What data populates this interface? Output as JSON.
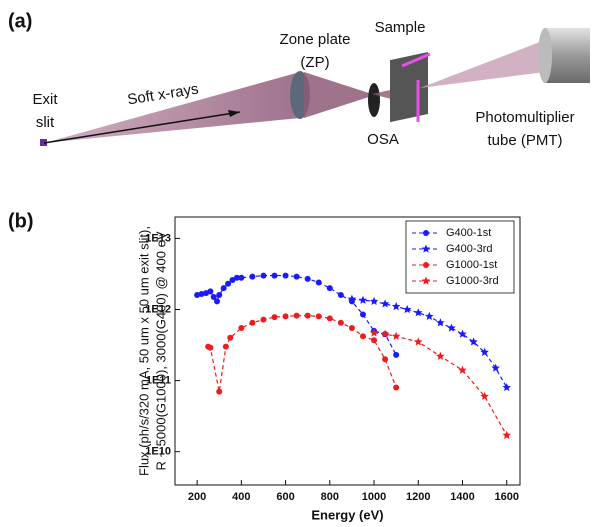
{
  "panel_a": {
    "label": "(a)",
    "exit": "Exit",
    "slit": "slit",
    "beam": "Soft x-rays",
    "zp1": "Zone plate",
    "zp2": "(ZP)",
    "sample": "Sample",
    "osa": "OSA",
    "pmt1": "Photomultiplier",
    "pmt2": "tube (PMT)"
  },
  "chart_data": {
    "type": "line",
    "panel_label": "(b)",
    "log_y": true,
    "xlabel": "Energy (eV)",
    "ylabel": [
      "Flux (ph/s/320 mA, 50 um x 50 um exit slit),",
      "R ~ 5000(G1000), 3000(G400) @ 400 eV"
    ],
    "xlim": [
      100,
      1660
    ],
    "xticks": [
      200,
      400,
      600,
      800,
      1000,
      1200,
      1400,
      1600
    ],
    "ylim": [
      3400000000.0,
      20000000000000.0
    ],
    "yticks": [
      {
        "value": 10000000000.0,
        "label": "1E10"
      },
      {
        "value": 100000000000.0,
        "label": "1E11"
      },
      {
        "value": 1000000000000.0,
        "label": "1E12"
      },
      {
        "value": 10000000000000.0,
        "label": "1E13"
      }
    ],
    "legend": "top-right",
    "series": [
      {
        "name": "G400-1st",
        "color": "#1a1aff",
        "marker": "circle",
        "x": [
          200,
          220,
          240,
          260,
          275,
          290,
          300,
          320,
          340,
          360,
          380,
          400,
          450,
          500,
          550,
          600,
          650,
          700,
          750,
          800,
          850,
          900,
          950,
          1000,
          1050,
          1100
        ],
        "values": [
          1600000000000.0,
          1650000000000.0,
          1700000000000.0,
          1800000000000.0,
          1500000000000.0,
          1300000000000.0,
          1600000000000.0,
          2000000000000.0,
          2300000000000.0,
          2600000000000.0,
          2800000000000.0,
          2800000000000.0,
          2900000000000.0,
          3000000000000.0,
          3000000000000.0,
          3000000000000.0,
          2900000000000.0,
          2700000000000.0,
          2400000000000.0,
          2000000000000.0,
          1600000000000.0,
          1300000000000.0,
          850000000000.0,
          500000000000.0,
          450000000000.0,
          230000000000.0
        ]
      },
      {
        "name": "G400-3rd",
        "color": "#1a1aff",
        "marker": "star",
        "x": [
          900,
          950,
          1000,
          1050,
          1100,
          1150,
          1200,
          1250,
          1300,
          1350,
          1400,
          1450,
          1500,
          1550,
          1600
        ],
        "values": [
          1400000000000.0,
          1350000000000.0,
          1300000000000.0,
          1200000000000.0,
          1100000000000.0,
          1000000000000.0,
          900000000000.0,
          800000000000.0,
          650000000000.0,
          550000000000.0,
          450000000000.0,
          350000000000.0,
          250000000000.0,
          150000000000.0,
          80000000000.0
        ]
      },
      {
        "name": "G1000-1st",
        "color": "#ee1c1c",
        "marker": "circle",
        "x": [
          250,
          260,
          300,
          330,
          350,
          400,
          450,
          500,
          550,
          600,
          650,
          700,
          750,
          800,
          850,
          900,
          950,
          1000,
          1050,
          1100
        ],
        "values": [
          300000000000.0,
          290000000000.0,
          70000000000.0,
          300000000000.0,
          400000000000.0,
          550000000000.0,
          650000000000.0,
          720000000000.0,
          780000000000.0,
          800000000000.0,
          820000000000.0,
          820000000000.0,
          800000000000.0,
          750000000000.0,
          650000000000.0,
          550000000000.0,
          420000000000.0,
          370000000000.0,
          200000000000.0,
          80000000000.0
        ]
      },
      {
        "name": "G1000-3rd",
        "color": "#ee1c1c",
        "marker": "star",
        "x": [
          1000,
          1050,
          1100,
          1200,
          1300,
          1400,
          1500,
          1600
        ],
        "values": [
          470000000000.0,
          450000000000.0,
          420000000000.0,
          350000000000.0,
          220000000000.0,
          140000000000.0,
          60000000000.0,
          17000000000.0
        ]
      }
    ]
  }
}
